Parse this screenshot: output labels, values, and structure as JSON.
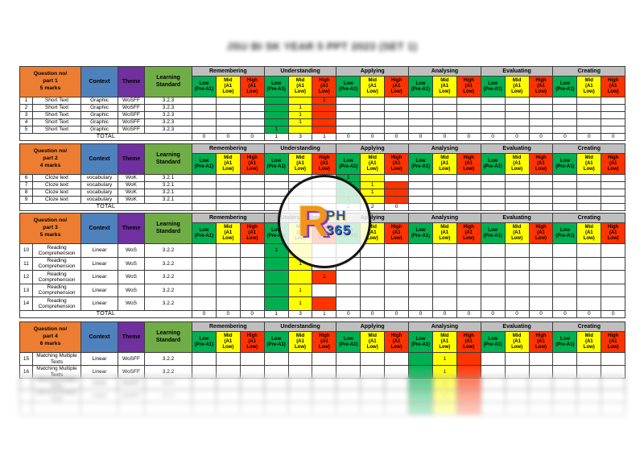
{
  "title": "JSU BI SK YEAR 5 PPT 2023 (SET 1)",
  "columns": {
    "context": "Context",
    "theme": "Theme",
    "standard": "Learning\nStandard",
    "total_label": "TOTAL"
  },
  "taxonomy_groups": [
    "Remembering",
    "Understanding",
    "Applying",
    "Analysing",
    "Evaluating",
    "Creating"
  ],
  "levels": [
    {
      "key": "low",
      "label": "Low\n(Pre-A1)"
    },
    {
      "key": "mid",
      "label": "Mid\n(A1\nLow)"
    },
    {
      "key": "high",
      "label": "High\n(A1\nLow)"
    }
  ],
  "colors": {
    "part_orange": "#ED7D31",
    "context_blue": "#4F81BD",
    "theme_purple": "#7030A0",
    "standard_green": "#70AD47",
    "band_gray": "#BFBFBF",
    "low_green": "#00B050",
    "mid_yellow": "#FFFF00",
    "high_red": "#FF3300"
  },
  "watermark": {
    "letter": "R",
    "top_text": "PH",
    "bottom_text": "365"
  },
  "sections": [
    {
      "part_label": "Question no/\npart 1\n5 marks",
      "rows": [
        {
          "num": "1",
          "question": "Short Text",
          "context": "Graphic",
          "theme": "WoSFF",
          "standard": "3.2.3",
          "cells": [
            {
              "g": 1,
              "l": 0,
              "fill": "green",
              "v": ""
            },
            {
              "g": 1,
              "l": 1,
              "fill": "yellow",
              "v": ""
            },
            {
              "g": 1,
              "l": 2,
              "fill": "red",
              "v": "1"
            }
          ]
        },
        {
          "num": "2",
          "question": "Short Text",
          "context": "Graphic",
          "theme": "WoSFF",
          "standard": "3.2.3",
          "cells": [
            {
              "g": 1,
              "l": 0,
              "fill": "green",
              "v": ""
            },
            {
              "g": 1,
              "l": 1,
              "fill": "yellow",
              "v": "1"
            },
            {
              "g": 1,
              "l": 2,
              "fill": "red",
              "v": ""
            }
          ]
        },
        {
          "num": "3",
          "question": "Short Text",
          "context": "Graphic",
          "theme": "WoSFF",
          "standard": "3.2.3",
          "cells": [
            {
              "g": 1,
              "l": 0,
              "fill": "green",
              "v": ""
            },
            {
              "g": 1,
              "l": 1,
              "fill": "yellow",
              "v": "1"
            },
            {
              "g": 1,
              "l": 2,
              "fill": "red",
              "v": ""
            }
          ]
        },
        {
          "num": "4",
          "question": "Short Text",
          "context": "Graphic",
          "theme": "WoSFF",
          "standard": "3.2.3",
          "cells": [
            {
              "g": 1,
              "l": 0,
              "fill": "green",
              "v": ""
            },
            {
              "g": 1,
              "l": 1,
              "fill": "yellow",
              "v": "1"
            },
            {
              "g": 1,
              "l": 2,
              "fill": "red",
              "v": ""
            }
          ]
        },
        {
          "num": "5",
          "question": "Short Text",
          "context": "Graphic",
          "theme": "WoSFF",
          "standard": "3.2.3",
          "cells": [
            {
              "g": 1,
              "l": 0,
              "fill": "green",
              "v": "1"
            },
            {
              "g": 1,
              "l": 1,
              "fill": "yellow",
              "v": ""
            },
            {
              "g": 1,
              "l": 2,
              "fill": "red",
              "v": ""
            }
          ]
        }
      ],
      "totals": [
        "0",
        "0",
        "0",
        "1",
        "3",
        "1",
        "0",
        "0",
        "0",
        "0",
        "0",
        "0",
        "0",
        "0",
        "0",
        "0",
        "0",
        "0"
      ]
    },
    {
      "part_label": "Question no/\npart 2\n4 marks",
      "rows": [
        {
          "num": "6",
          "question": "Cloze text",
          "context": "vocabulary",
          "theme": "WoK",
          "standard": "3.2.1",
          "cells": [
            {
              "g": 2,
              "l": 0,
              "fill": "green",
              "v": "1"
            },
            {
              "g": 2,
              "l": 1,
              "fill": "yellow",
              "v": ""
            }
          ]
        },
        {
          "num": "7",
          "question": "Cloze text",
          "context": "vocabulary",
          "theme": "WoK",
          "standard": "3.2.1",
          "cells": [
            {
              "g": 2,
              "l": 0,
              "fill": "green",
              "v": ""
            },
            {
              "g": 2,
              "l": 1,
              "fill": "yellow",
              "v": "1"
            },
            {
              "g": 2,
              "l": 2,
              "fill": "red",
              "v": ""
            }
          ]
        },
        {
          "num": "8",
          "question": "Cloze text",
          "context": "vocabulary",
          "theme": "WoK",
          "standard": "3.2.1",
          "cells": [
            {
              "g": 2,
              "l": 0,
              "fill": "green",
              "v": ""
            },
            {
              "g": 2,
              "l": 1,
              "fill": "yellow",
              "v": "1"
            },
            {
              "g": 2,
              "l": 2,
              "fill": "red",
              "v": ""
            }
          ]
        },
        {
          "num": "9",
          "question": "Cloze text",
          "context": "vocabulary",
          "theme": "WoK",
          "standard": "3.2.1",
          "cells": [
            {
              "g": 2,
              "l": 0,
              "fill": "green",
              "v": "1"
            },
            {
              "g": 2,
              "l": 1,
              "fill": "yellow",
              "v": ""
            },
            {
              "g": 2,
              "l": 2,
              "fill": "red",
              "v": ""
            }
          ]
        }
      ],
      "totals": [
        "",
        "",
        "",
        "",
        "",
        "",
        "2",
        "2",
        "0",
        "",
        "",
        "",
        "",
        "",
        "",
        "",
        "",
        ""
      ]
    },
    {
      "part_label": "Question no/\npart 3\n5 marks",
      "rows": [
        {
          "num": "10",
          "question": "Reading Comprehension",
          "context": "Linear",
          "theme": "WoS",
          "standard": "3.2.2",
          "cells": [
            {
              "g": 1,
              "l": 0,
              "fill": "green",
              "v": "1"
            },
            {
              "g": 1,
              "l": 1,
              "fill": "yellow",
              "v": ""
            }
          ]
        },
        {
          "num": "11",
          "question": "Reading Comprehension",
          "context": "Linear",
          "theme": "WoS",
          "standard": "3.2.2",
          "cells": [
            {
              "g": 1,
              "l": 0,
              "fill": "green",
              "v": ""
            },
            {
              "g": 1,
              "l": 1,
              "fill": "yellow",
              "v": "1"
            }
          ]
        },
        {
          "num": "12",
          "question": "Reading Comprehension",
          "context": "Linear",
          "theme": "WoS",
          "standard": "3.2.2",
          "cells": [
            {
              "g": 1,
              "l": 0,
              "fill": "green",
              "v": ""
            },
            {
              "g": 1,
              "l": 1,
              "fill": "yellow",
              "v": ""
            },
            {
              "g": 1,
              "l": 2,
              "fill": "red",
              "v": "1"
            }
          ]
        },
        {
          "num": "13",
          "question": "Reading Comprehension",
          "context": "Linear",
          "theme": "WoS",
          "standard": "3.2.2",
          "cells": [
            {
              "g": 1,
              "l": 0,
              "fill": "green",
              "v": ""
            },
            {
              "g": 1,
              "l": 1,
              "fill": "yellow",
              "v": "1"
            }
          ]
        },
        {
          "num": "14",
          "question": "Reading Comprehension",
          "context": "Linear",
          "theme": "WoS",
          "standard": "3.2.2",
          "cells": [
            {
              "g": 1,
              "l": 0,
              "fill": "green",
              "v": ""
            },
            {
              "g": 1,
              "l": 1,
              "fill": "yellow",
              "v": "1"
            },
            {
              "g": 1,
              "l": 2,
              "fill": "red",
              "v": ""
            }
          ]
        }
      ],
      "totals": [
        "0",
        "0",
        "0",
        "1",
        "3",
        "1",
        "0",
        "0",
        "0",
        "0",
        "0",
        "0",
        "0",
        "0",
        "0",
        "0",
        "0",
        "0"
      ]
    },
    {
      "part_label": "Question no/\npart 4\n6 marks",
      "rows": [
        {
          "num": "15",
          "question": "Matching Multiple Texts",
          "context": "Linear",
          "theme": "WoSFF",
          "standard": "3.2.2",
          "cells": [
            {
              "g": 3,
              "l": 0,
              "fill": "green",
              "v": ""
            },
            {
              "g": 3,
              "l": 1,
              "fill": "yellow",
              "v": "1"
            },
            {
              "g": 3,
              "l": 2,
              "fill": "red",
              "v": ""
            }
          ]
        },
        {
          "num": "16",
          "question": "Matching Multiple Texts",
          "context": "Linear",
          "theme": "WoSFF",
          "standard": "3.2.2",
          "cells": [
            {
              "g": 3,
              "l": 0,
              "fill": "green",
              "v": ""
            },
            {
              "g": 3,
              "l": 1,
              "fill": "yellow",
              "v": "1"
            },
            {
              "g": 3,
              "l": 2,
              "fill": "red",
              "v": ""
            }
          ]
        }
      ],
      "totals": null,
      "blurred_rows": [
        {
          "num": "",
          "question": "Matching Multiple Texts",
          "context": "Linear",
          "theme": "WoSFF",
          "standard": "3.2.2",
          "cells": [
            {
              "g": 3,
              "l": 0,
              "fill": "green",
              "v": ""
            },
            {
              "g": 3,
              "l": 1,
              "fill": "yellow",
              "v": "1"
            },
            {
              "g": 3,
              "l": 2,
              "fill": "red",
              "v": ""
            }
          ]
        },
        {
          "num": "",
          "question": "Matching Multiple Texts",
          "context": "Linear",
          "theme": "WoSFF",
          "standard": "3.2.2",
          "cells": [
            {
              "g": 3,
              "l": 0,
              "fill": "green",
              "v": ""
            },
            {
              "g": 3,
              "l": 1,
              "fill": "yellow",
              "v": "1"
            },
            {
              "g": 3,
              "l": 2,
              "fill": "red",
              "v": ""
            }
          ]
        },
        {
          "num": "",
          "question": "",
          "context": "",
          "theme": "",
          "standard": "",
          "cells": [
            {
              "g": 3,
              "l": 0,
              "fill": "green",
              "v": ""
            },
            {
              "g": 3,
              "l": 1,
              "fill": "yellow",
              "v": ""
            },
            {
              "g": 3,
              "l": 2,
              "fill": "red",
              "v": ""
            }
          ]
        }
      ]
    }
  ]
}
